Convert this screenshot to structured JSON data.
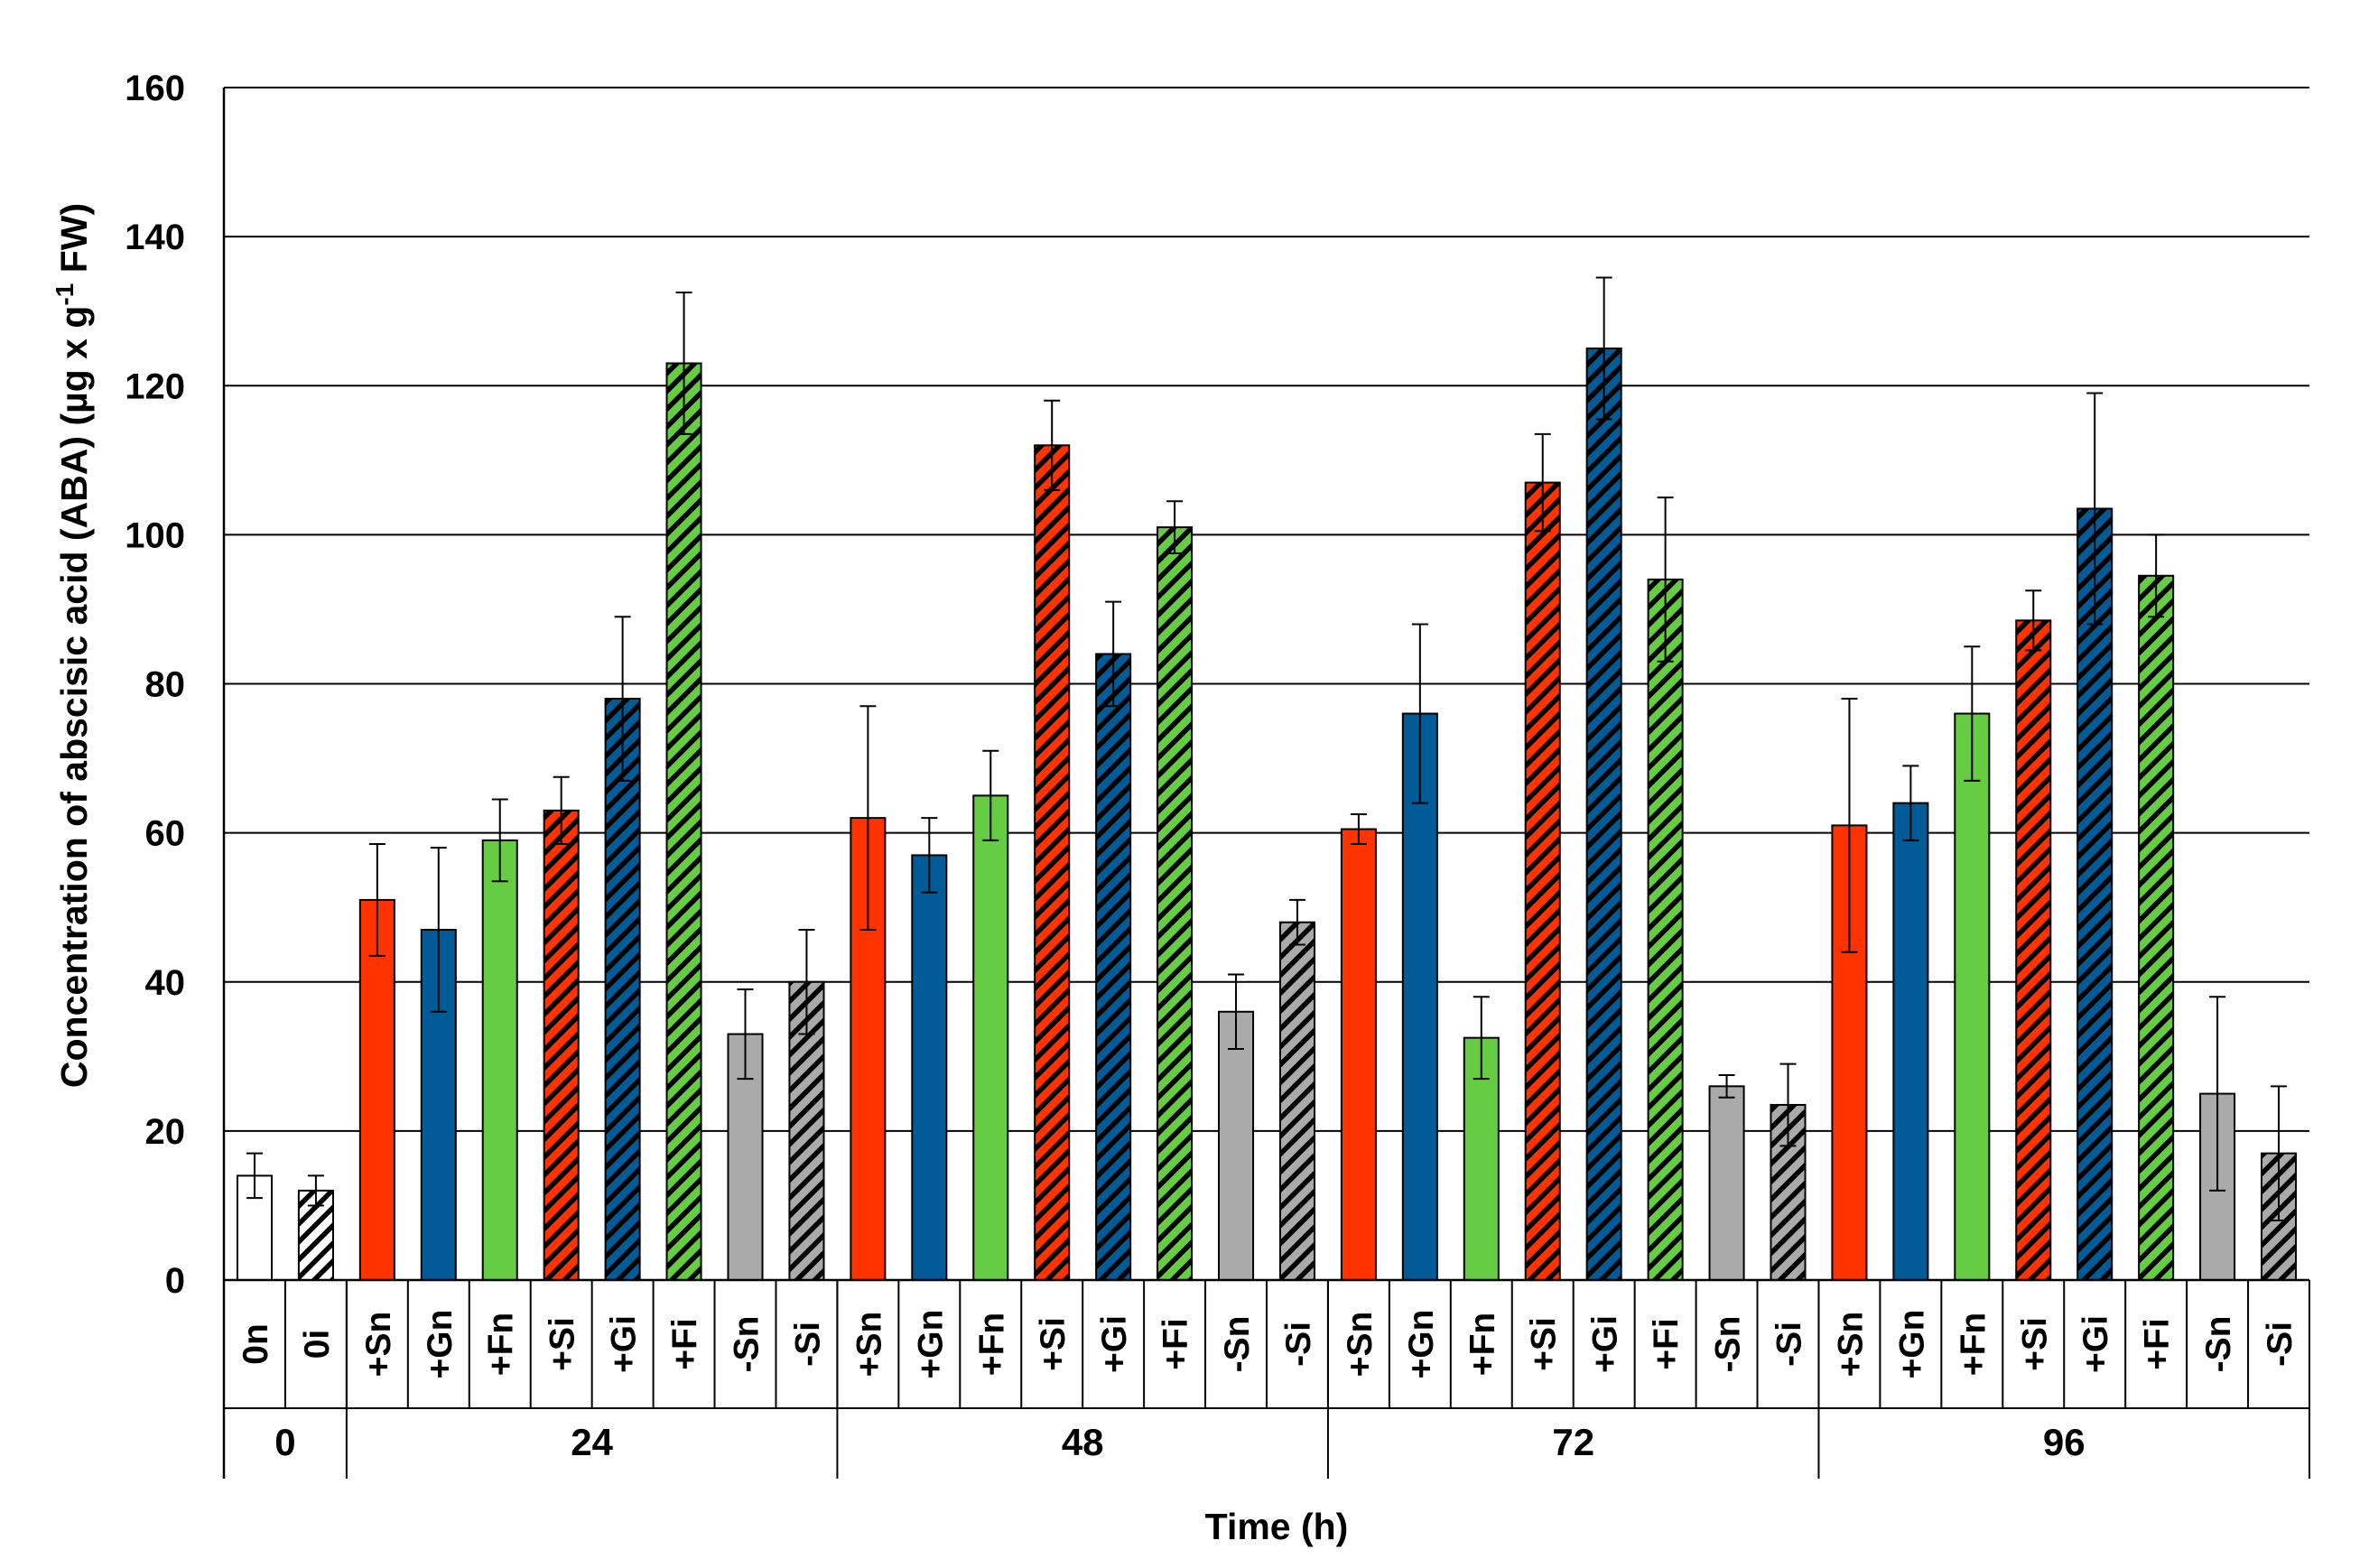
{
  "chart_data": {
    "type": "bar",
    "ylabel": "Concentration of abscisic  acid (ABA) (µg x g",
    "ylabel_sup": "-1",
    "ylabel_tail": " FW)",
    "xlabel": "Time (h)",
    "ylim": [
      0,
      160
    ],
    "yticks": [
      0,
      20,
      40,
      60,
      80,
      100,
      120,
      140,
      160
    ],
    "grid": true,
    "groups": [
      {
        "label": "0",
        "bars": [
          {
            "label": "0n",
            "value": 14,
            "err": 3,
            "color": "#ffffff",
            "hatch": false
          },
          {
            "label": "0i",
            "value": 12,
            "err": 2,
            "color": "#ffffff",
            "hatch": true
          }
        ]
      },
      {
        "label": "24",
        "bars": [
          {
            "label": "+Sn",
            "value": 51,
            "err": 7.5,
            "color": "#ff3300",
            "hatch": false
          },
          {
            "label": "+Gn",
            "value": 47,
            "err": 11,
            "color": "#005b96",
            "hatch": false
          },
          {
            "label": "+Fn",
            "value": 59,
            "err": 5.5,
            "color": "#66cc44",
            "hatch": false
          },
          {
            "label": "+Si",
            "value": 63,
            "err": 4.5,
            "color": "#ff3300",
            "hatch": true
          },
          {
            "label": "+Gi",
            "value": 78,
            "err": 11,
            "color": "#005b96",
            "hatch": true
          },
          {
            "label": "+Fi",
            "value": 123,
            "err": 9.5,
            "color": "#66cc44",
            "hatch": true
          },
          {
            "label": "-Sn",
            "value": 33,
            "err": 6,
            "color": "#aaaaaa",
            "hatch": false
          },
          {
            "label": "-Si",
            "value": 40,
            "err": 7,
            "color": "#aaaaaa",
            "hatch": true
          }
        ]
      },
      {
        "label": "48",
        "bars": [
          {
            "label": "+Sn",
            "value": 62,
            "err": 15,
            "color": "#ff3300",
            "hatch": false
          },
          {
            "label": "+Gn",
            "value": 57,
            "err": 5,
            "color": "#005b96",
            "hatch": false
          },
          {
            "label": "+Fn",
            "value": 65,
            "err": 6,
            "color": "#66cc44",
            "hatch": false
          },
          {
            "label": "+Si",
            "value": 112,
            "err": 6,
            "color": "#ff3300",
            "hatch": true
          },
          {
            "label": "+Gi",
            "value": 84,
            "err": 7,
            "color": "#005b96",
            "hatch": true
          },
          {
            "label": "+Fi",
            "value": 101,
            "err": 3.5,
            "color": "#66cc44",
            "hatch": true
          },
          {
            "label": "-Sn",
            "value": 36,
            "err": 5,
            "color": "#aaaaaa",
            "hatch": false
          },
          {
            "label": "-Si",
            "value": 48,
            "err": 3,
            "color": "#aaaaaa",
            "hatch": true
          }
        ]
      },
      {
        "label": "72",
        "bars": [
          {
            "label": "+Sn",
            "value": 60.5,
            "err": 2,
            "color": "#ff3300",
            "hatch": false
          },
          {
            "label": "+Gn",
            "value": 76,
            "err": 12,
            "color": "#005b96",
            "hatch": false
          },
          {
            "label": "+Fn",
            "value": 32.5,
            "err": 5.5,
            "color": "#66cc44",
            "hatch": false
          },
          {
            "label": "+Si",
            "value": 107,
            "err": 6.5,
            "color": "#ff3300",
            "hatch": true
          },
          {
            "label": "+Gi",
            "value": 125,
            "err": 9.5,
            "color": "#005b96",
            "hatch": true
          },
          {
            "label": "+Fi",
            "value": 94,
            "err": 11,
            "color": "#66cc44",
            "hatch": true
          },
          {
            "label": "-Sn",
            "value": 26,
            "err": 1.5,
            "color": "#aaaaaa",
            "hatch": false
          },
          {
            "label": "-Si",
            "value": 23.5,
            "err": 5.5,
            "color": "#aaaaaa",
            "hatch": true
          }
        ]
      },
      {
        "label": "96",
        "bars": [
          {
            "label": "+Sn",
            "value": 61,
            "err": 17,
            "color": "#ff3300",
            "hatch": false
          },
          {
            "label": "+Gn",
            "value": 64,
            "err": 5,
            "color": "#005b96",
            "hatch": false
          },
          {
            "label": "+Fn",
            "value": 76,
            "err": 9,
            "color": "#66cc44",
            "hatch": false
          },
          {
            "label": "+Si",
            "value": 88.5,
            "err": 4,
            "color": "#ff3300",
            "hatch": true
          },
          {
            "label": "+Gi",
            "value": 103.5,
            "err": 15.5,
            "color": "#005b96",
            "hatch": true
          },
          {
            "label": "+Fi",
            "value": 94.5,
            "err": 5.5,
            "color": "#66cc44",
            "hatch": true
          },
          {
            "label": "-Sn",
            "value": 25,
            "err": 13,
            "color": "#aaaaaa",
            "hatch": false
          },
          {
            "label": "-Si",
            "value": 17,
            "err": 9,
            "color": "#aaaaaa",
            "hatch": true
          }
        ]
      }
    ]
  }
}
